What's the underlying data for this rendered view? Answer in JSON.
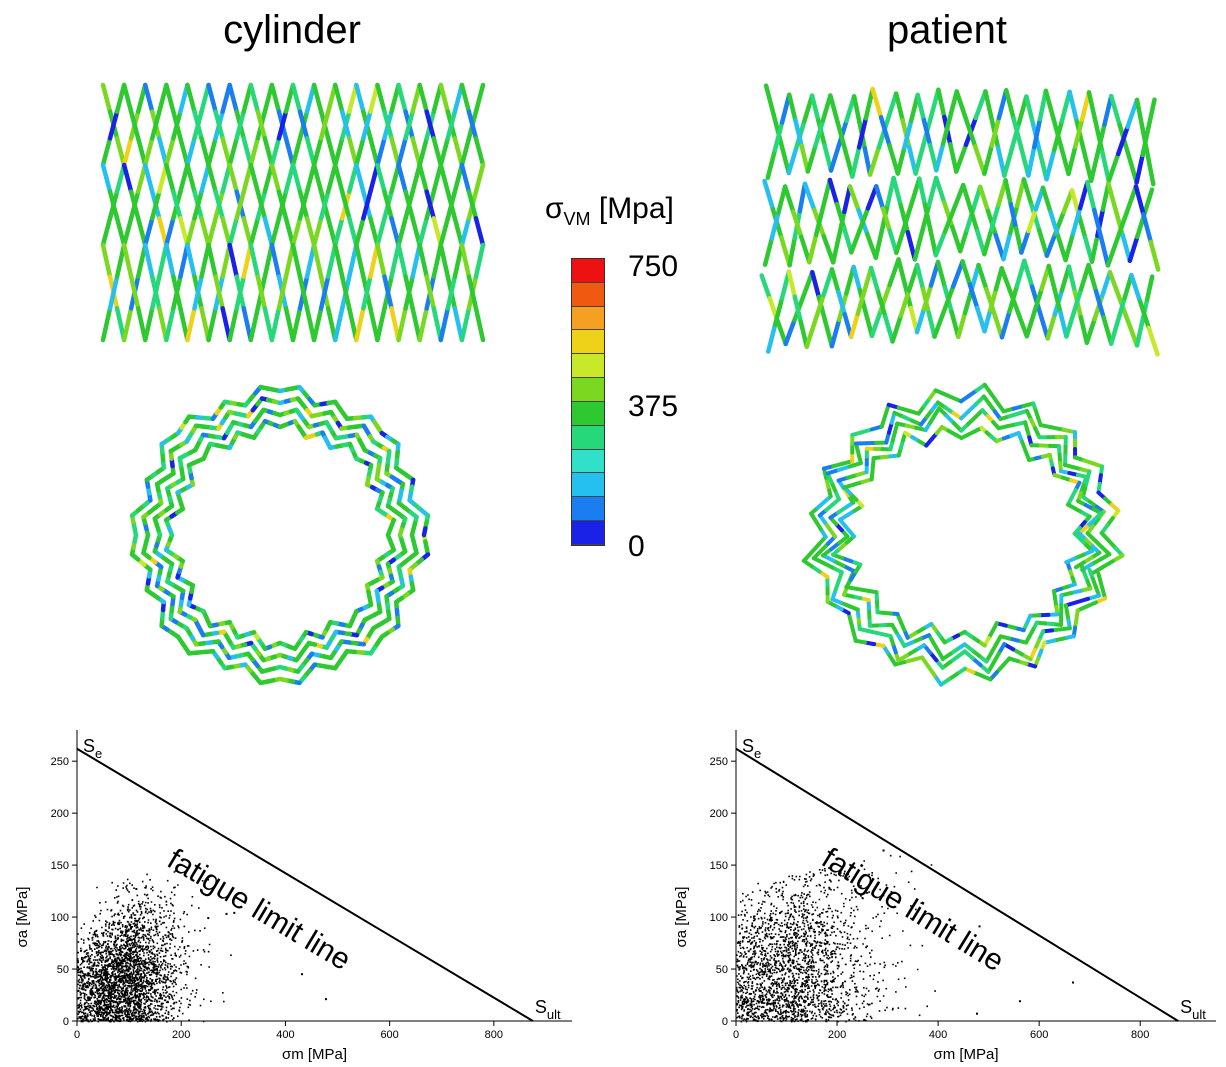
{
  "panels": {
    "left_title": "cylinder",
    "right_title": "patient"
  },
  "colorbar": {
    "label_main": "σ",
    "label_sub": "VM",
    "label_unit": "[Mpa]",
    "ticks": [
      "750",
      "375",
      "0"
    ],
    "colors": [
      "#ee1111",
      "#f05a10",
      "#f5a020",
      "#eed21a",
      "#c8e82a",
      "#7ad820",
      "#2ec830",
      "#27d87a",
      "#30e0c8",
      "#26c0ee",
      "#1a7ef0",
      "#1b22e8"
    ]
  },
  "chart_data": [
    {
      "type": "scatter",
      "name_hint": "cylinder",
      "xlabel": "σm [MPa]",
      "ylabel": "σa [MPa]",
      "xlim": [
        0,
        950
      ],
      "ylim": [
        0,
        280
      ],
      "xticks": [
        0,
        200,
        400,
        600,
        800
      ],
      "yticks": [
        0,
        50,
        100,
        150,
        200,
        250
      ],
      "fatigue_limit_line": {
        "x": [
          0,
          875
        ],
        "y": [
          262,
          0
        ]
      },
      "annotations": {
        "se": "S",
        "se_sub": "e",
        "sult": "S",
        "sult_sub": "ult",
        "line_label": "fatigue limit line"
      },
      "cloud": {
        "x_center": 90,
        "y_center": 30,
        "x_spread": 60,
        "y_spread": 25,
        "outliers": [
          [
            300,
            105
          ],
          [
            285,
            104
          ],
          [
            250,
            100
          ],
          [
            476,
            22
          ],
          [
            430,
            46
          ],
          [
            112,
            128
          ]
        ]
      }
    },
    {
      "type": "scatter",
      "name_hint": "patient",
      "xlabel": "σm [MPa]",
      "ylabel": "σa [MPa]",
      "xlim": [
        0,
        950
      ],
      "ylim": [
        0,
        280
      ],
      "xticks": [
        0,
        200,
        400,
        600,
        800
      ],
      "yticks": [
        0,
        50,
        100,
        150,
        200,
        250
      ],
      "fatigue_limit_line": {
        "x": [
          0,
          875
        ],
        "y": [
          262,
          0
        ]
      },
      "annotations": {
        "se": "S",
        "se_sub": "e",
        "sult": "S",
        "sult_sub": "ult",
        "line_label": "fatigue limit line"
      },
      "cloud": {
        "x_center": 110,
        "y_center": 35,
        "x_spread": 90,
        "y_spread": 35,
        "outliers": [
          [
            290,
            165
          ],
          [
            180,
            158
          ],
          [
            480,
            92
          ],
          [
            665,
            38
          ],
          [
            560,
            20
          ],
          [
            475,
            8
          ]
        ]
      }
    }
  ]
}
